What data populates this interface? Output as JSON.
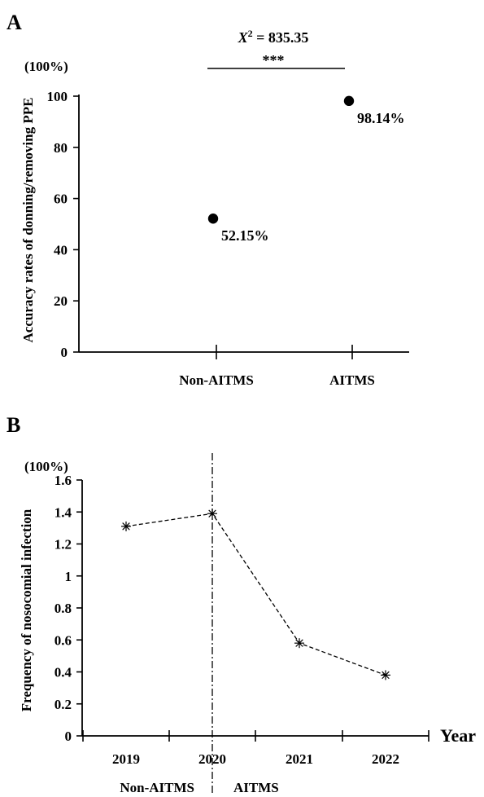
{
  "chart_data": [
    {
      "panel_label": "A",
      "type": "scatter",
      "unit": "(100%)",
      "ylabel": "Accuracy rates of donning/removing PPE",
      "categories": [
        "Non-AITMS",
        "AITMS"
      ],
      "values": [
        52.15,
        98.14
      ],
      "data_labels": [
        "52.15%",
        "98.14%"
      ],
      "ylim": [
        0,
        100
      ],
      "yticks": [
        0,
        20,
        40,
        60,
        80,
        100
      ],
      "ytick_labels": [
        "0",
        "20",
        "40",
        "60",
        "80",
        "100"
      ],
      "stat_prefix": "X",
      "stat_exponent": "2",
      "stat_value": " = 835.35",
      "significance": "***",
      "grid": false
    },
    {
      "panel_label": "B",
      "type": "line",
      "unit": "(100%)",
      "ylabel": "Frequency of nosocomial infection",
      "xlabel": "Year",
      "categories": [
        "2019",
        "2020",
        "2021",
        "2022"
      ],
      "values": [
        1.31,
        1.39,
        0.58,
        0.38
      ],
      "ylim": [
        0,
        1.6
      ],
      "yticks": [
        0,
        0.2,
        0.4,
        0.6,
        0.8,
        1,
        1.2,
        1.4,
        1.6
      ],
      "ytick_labels": [
        "0",
        "0.2",
        "0.4",
        "0.6",
        "0.8",
        "1",
        "1.2",
        "1.4",
        "1.6"
      ],
      "divider_at": "2020",
      "period_labels": [
        "Non-AITMS",
        "AITMS"
      ],
      "line_style": "dashed",
      "marker": "asterisk",
      "grid": false
    }
  ]
}
